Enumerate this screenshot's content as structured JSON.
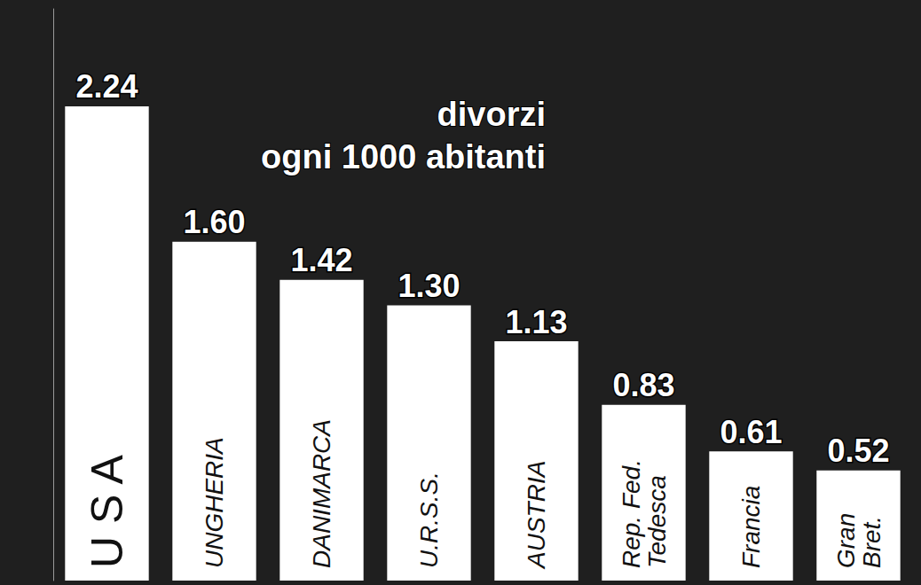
{
  "chart_data": {
    "type": "bar",
    "title": "divorzi ogni 1000 abitanti",
    "categories": [
      "U S A",
      "UNGHERIA",
      "DANIMARCA",
      "U.R.S.S.",
      "AUSTRIA",
      "Rep. Fed. Tedesca",
      "Francia",
      "Gran Bret."
    ],
    "values": [
      2.24,
      1.6,
      1.42,
      1.3,
      1.13,
      0.83,
      0.61,
      0.52
    ],
    "value_labels": [
      "2.24",
      "1.60",
      "1.42",
      "1.30",
      "1.13",
      "0.83",
      "0.61",
      "0.52"
    ],
    "color": "#ffffff",
    "ylim": [
      0,
      2.7
    ],
    "grid": false,
    "tick_labels": false,
    "data_labels": true
  }
}
